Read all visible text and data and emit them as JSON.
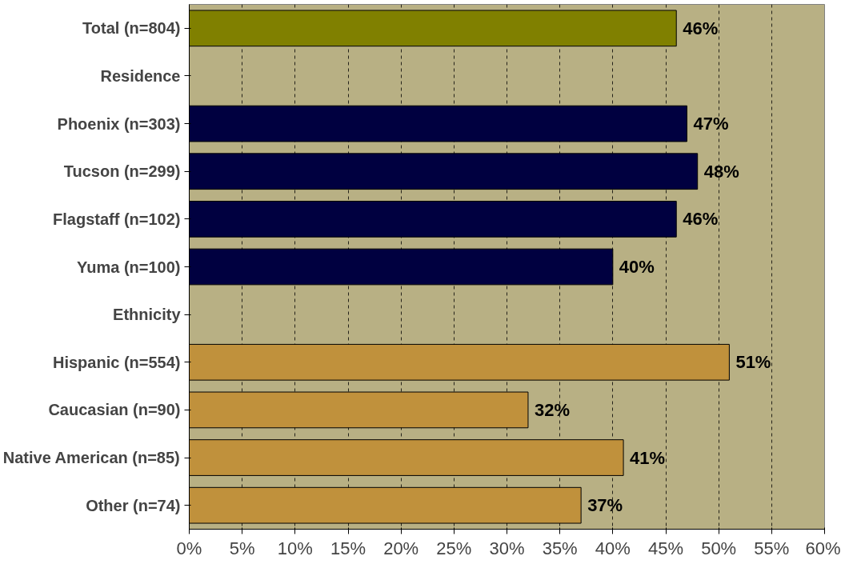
{
  "chart_data": {
    "type": "bar",
    "orientation": "horizontal",
    "categories": [
      "Total (n=804)",
      "Residence",
      "Phoenix (n=303)",
      "Tucson (n=299)",
      "Flagstaff (n=102)",
      "Yuma (n=100)",
      "Ethnicity",
      "Hispanic (n=554)",
      "Caucasian (n=90)",
      "Native American (n=85)",
      "Other (n=74)"
    ],
    "values": [
      46,
      null,
      47,
      48,
      46,
      40,
      null,
      51,
      32,
      41,
      37
    ],
    "colors": [
      "#808000",
      null,
      "#000040",
      "#000040",
      "#000040",
      "#000040",
      null,
      "#c0913c",
      "#c0913c",
      "#c0913c",
      "#c0913c"
    ],
    "value_labels": [
      "46%",
      null,
      "47%",
      "48%",
      "46%",
      "40%",
      null,
      "51%",
      "32%",
      "41%",
      "37%"
    ],
    "xlim": [
      0,
      60
    ],
    "xticks": [
      {
        "value": 0,
        "label": "0%"
      },
      {
        "value": 5,
        "label": "5%"
      },
      {
        "value": 10,
        "label": "10%"
      },
      {
        "value": 15,
        "label": "15%"
      },
      {
        "value": 20,
        "label": "20%"
      },
      {
        "value": 25,
        "label": "25%"
      },
      {
        "value": 30,
        "label": "30%"
      },
      {
        "value": 35,
        "label": "35%"
      },
      {
        "value": 40,
        "label": "40%"
      },
      {
        "value": 45,
        "label": "45%"
      },
      {
        "value": 50,
        "label": "50%"
      },
      {
        "value": 55,
        "label": "55%"
      },
      {
        "value": 60,
        "label": "60%"
      }
    ],
    "grid": "x"
  }
}
